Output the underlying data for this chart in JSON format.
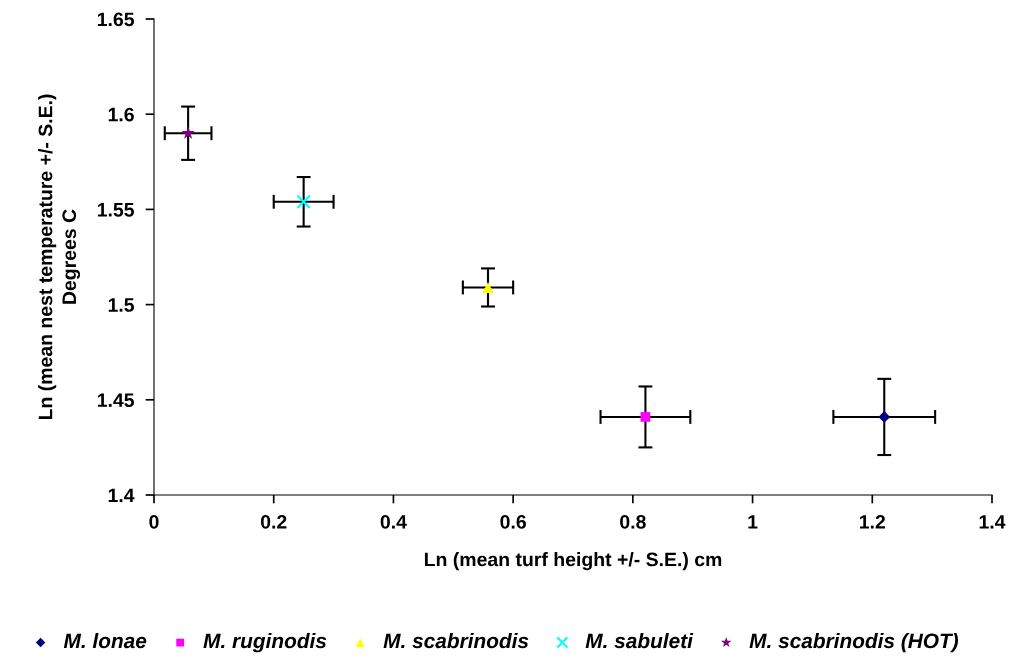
{
  "chart_data": {
    "type": "scatter",
    "xlabel": "Ln (mean turf height +/- S.E.) cm",
    "ylabel": "Ln (mean nest temperature +/- S.E.)\nDegrees C",
    "xlim": [
      0,
      1.4
    ],
    "xticks": [
      0,
      0.2,
      0.4,
      0.6,
      0.8,
      1,
      1.2,
      1.4
    ],
    "ylim": [
      1.4,
      1.65
    ],
    "yticks": [
      1.4,
      1.45,
      1.5,
      1.55,
      1.6,
      1.65
    ],
    "grid": false,
    "legend": "bottom",
    "series": [
      {
        "name": "M. lonae",
        "color": "#000080",
        "marker": "diamond",
        "x": [
          1.22
        ],
        "values": [
          1.441
        ],
        "errors": [
          0.02
        ],
        "xerrors": [
          0.085
        ]
      },
      {
        "name": "M. ruginodis",
        "color": "#ff00ff",
        "marker": "square",
        "x": [
          0.821
        ],
        "values": [
          1.441
        ],
        "errors": [
          0.016
        ],
        "xerrors": [
          0.075
        ]
      },
      {
        "name": "M. scabrinodis",
        "color": "#ffff00",
        "marker": "triangle",
        "x": [
          0.558
        ],
        "values": [
          1.509
        ],
        "errors": [
          0.01
        ],
        "xerrors": [
          0.042
        ]
      },
      {
        "name": "M. sabuleti",
        "color": "#00ffff",
        "marker": "cross",
        "x": [
          0.25
        ],
        "values": [
          1.554
        ],
        "errors": [
          0.013
        ],
        "xerrors": [
          0.05
        ]
      },
      {
        "name": "M. scabrinodis (HOT)",
        "color": "#800080",
        "marker": "star",
        "x": [
          0.057
        ],
        "values": [
          1.59
        ],
        "errors": [
          0.014
        ],
        "xerrors": [
          0.039
        ]
      }
    ]
  }
}
